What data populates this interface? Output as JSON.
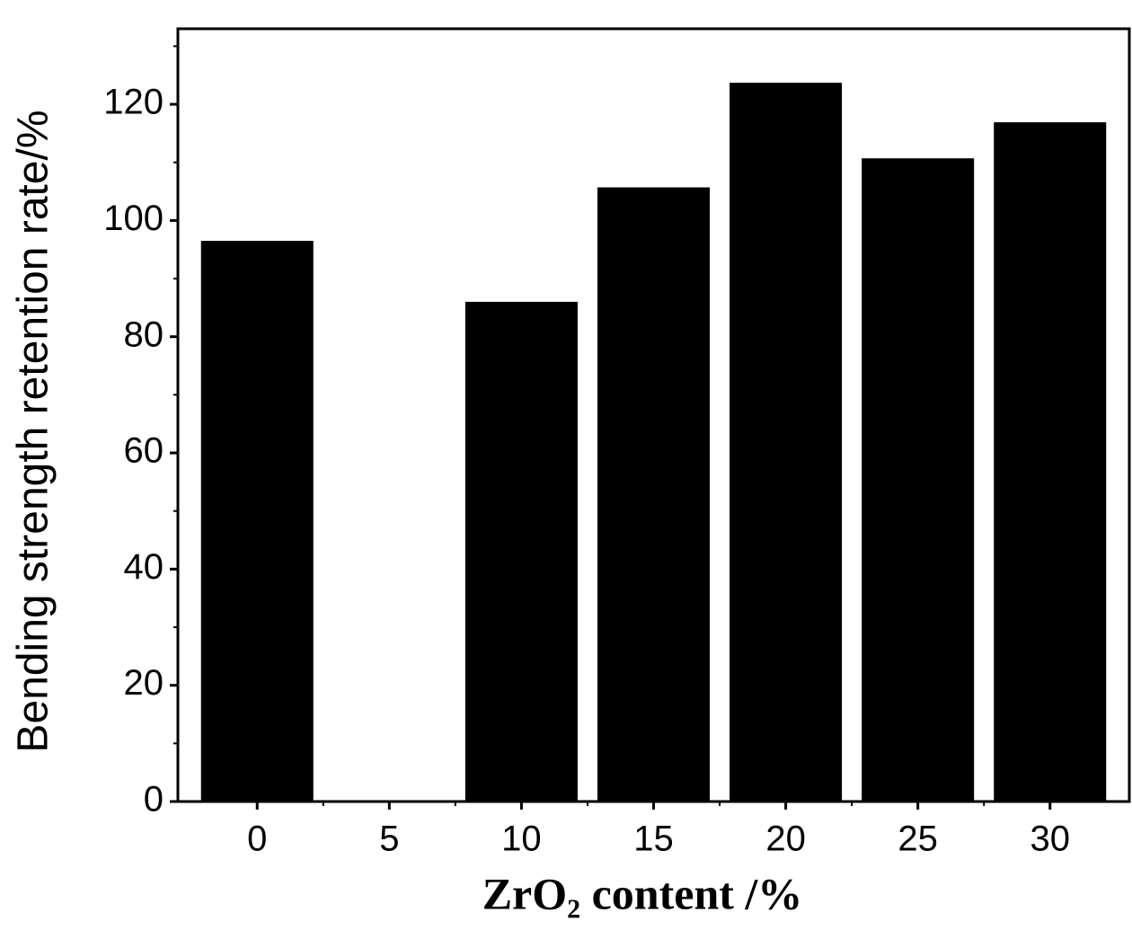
{
  "chart_data": {
    "type": "bar",
    "x_label": "ZrO₂ content /%",
    "y_label": "Bending strength retention rate/%",
    "x": [
      0,
      5,
      10,
      15,
      20,
      25,
      30
    ],
    "values": [
      96.5,
      null,
      86,
      105.7,
      123.7,
      110.7,
      116.9
    ],
    "color": "#000000",
    "xlim": [
      -3,
      33
    ],
    "xticks": [
      0,
      5,
      10,
      15,
      20,
      25,
      30
    ],
    "ylim": [
      0,
      133
    ],
    "yticks": [
      0,
      20,
      40,
      60,
      80,
      100,
      120
    ]
  }
}
